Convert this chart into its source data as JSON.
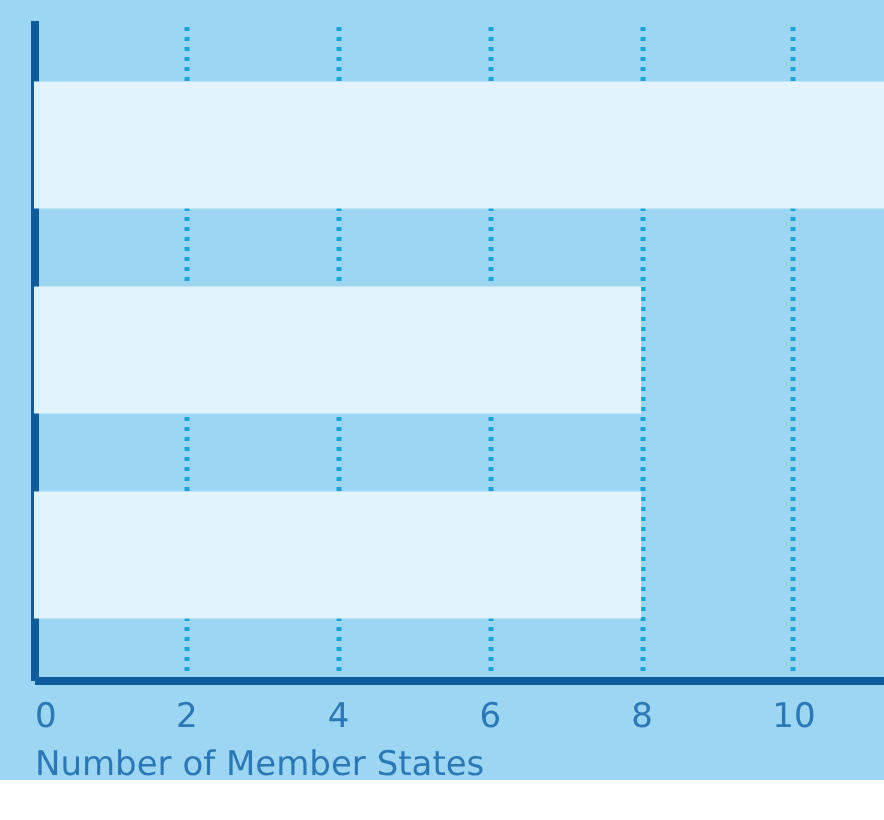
{
  "chart_data": {
    "type": "bar",
    "orientation": "horizontal",
    "xlabel": "Number of Member States",
    "categories": [
      null,
      null,
      null
    ],
    "values": [
      11.2,
      8,
      8
    ],
    "color": "#e1f3fb",
    "xlim": [
      0,
      11.2
    ],
    "xticks": [
      0,
      2,
      4,
      6,
      8,
      10
    ],
    "grid": "x",
    "tick_labels": "x"
  }
}
